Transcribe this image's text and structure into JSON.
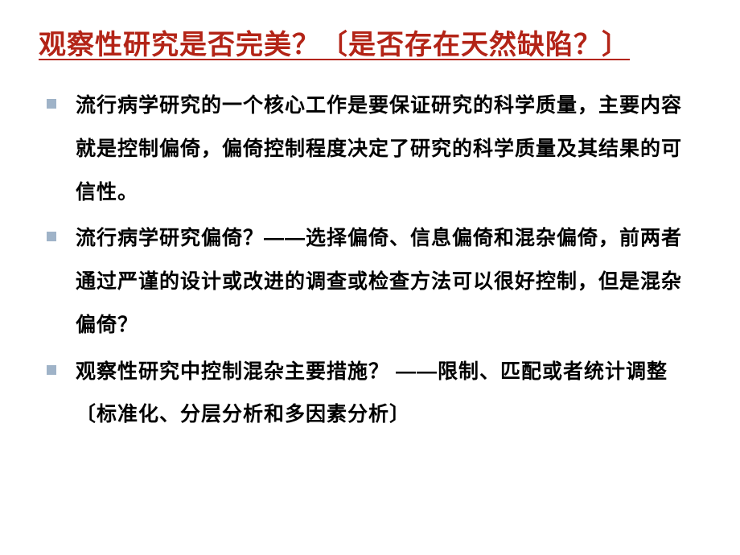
{
  "title": {
    "text": "观察性研究是否完美？〔是否存在天然缺陷？〕",
    "color": "#b32417",
    "fontsize": 34
  },
  "bullets": [
    {
      "text": "流行病学研究的一个核心工作是要保证研究的科学质量，主要内容就是控制偏倚，偏倚控制程度决定了研究的科学质量及其结果的可信性。",
      "marker_color": "#9fb3c8"
    },
    {
      "text": "流行病学研究偏倚？——选择偏倚、信息偏倚和混杂偏倚，前两者通过严谨的设计或改进的调查或检查方法可以很好控制，但是混杂偏倚？",
      "marker_color": "#9fb3c8"
    },
    {
      "text": "观察性研究中控制混杂主要措施？ ——限制、匹配或者统计调整〔标准化、分层分析和多因素分析〕",
      "marker_color": "#9fb3c8"
    }
  ],
  "body_text_color": "#000000",
  "body_fontsize": 25,
  "background_color": "#ffffff"
}
